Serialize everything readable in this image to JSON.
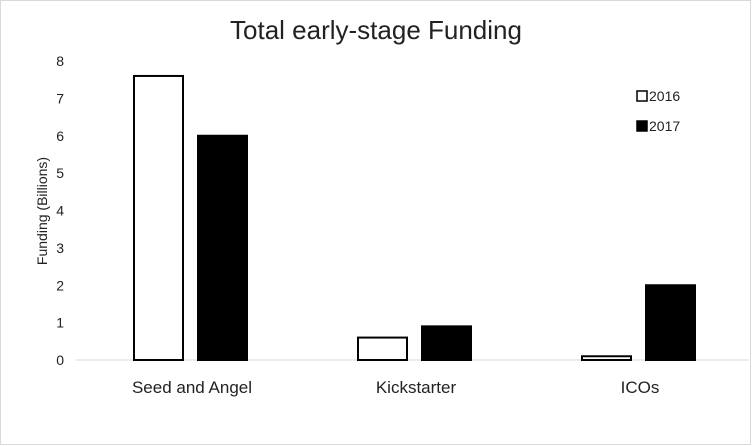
{
  "chart_data": {
    "type": "bar",
    "title": "Total early-stage Funding",
    "xlabel": "",
    "ylabel": "Funding (Billions)",
    "ylim": [
      0,
      8
    ],
    "yticks": [
      "0",
      "1",
      "2",
      "3",
      "4",
      "5",
      "6",
      "7",
      "8"
    ],
    "categories": [
      "Seed and Angel",
      "Kickstarter",
      "ICOs"
    ],
    "series": [
      {
        "name": "2016",
        "values": [
          7.6,
          0.6,
          0.1
        ],
        "fill": "#ffffff",
        "stroke": "#000000"
      },
      {
        "name": "2017",
        "values": [
          6.0,
          0.9,
          2.0
        ],
        "fill": "#000000",
        "stroke": "#000000"
      }
    ],
    "grid": false,
    "legend_position": "top-right"
  }
}
